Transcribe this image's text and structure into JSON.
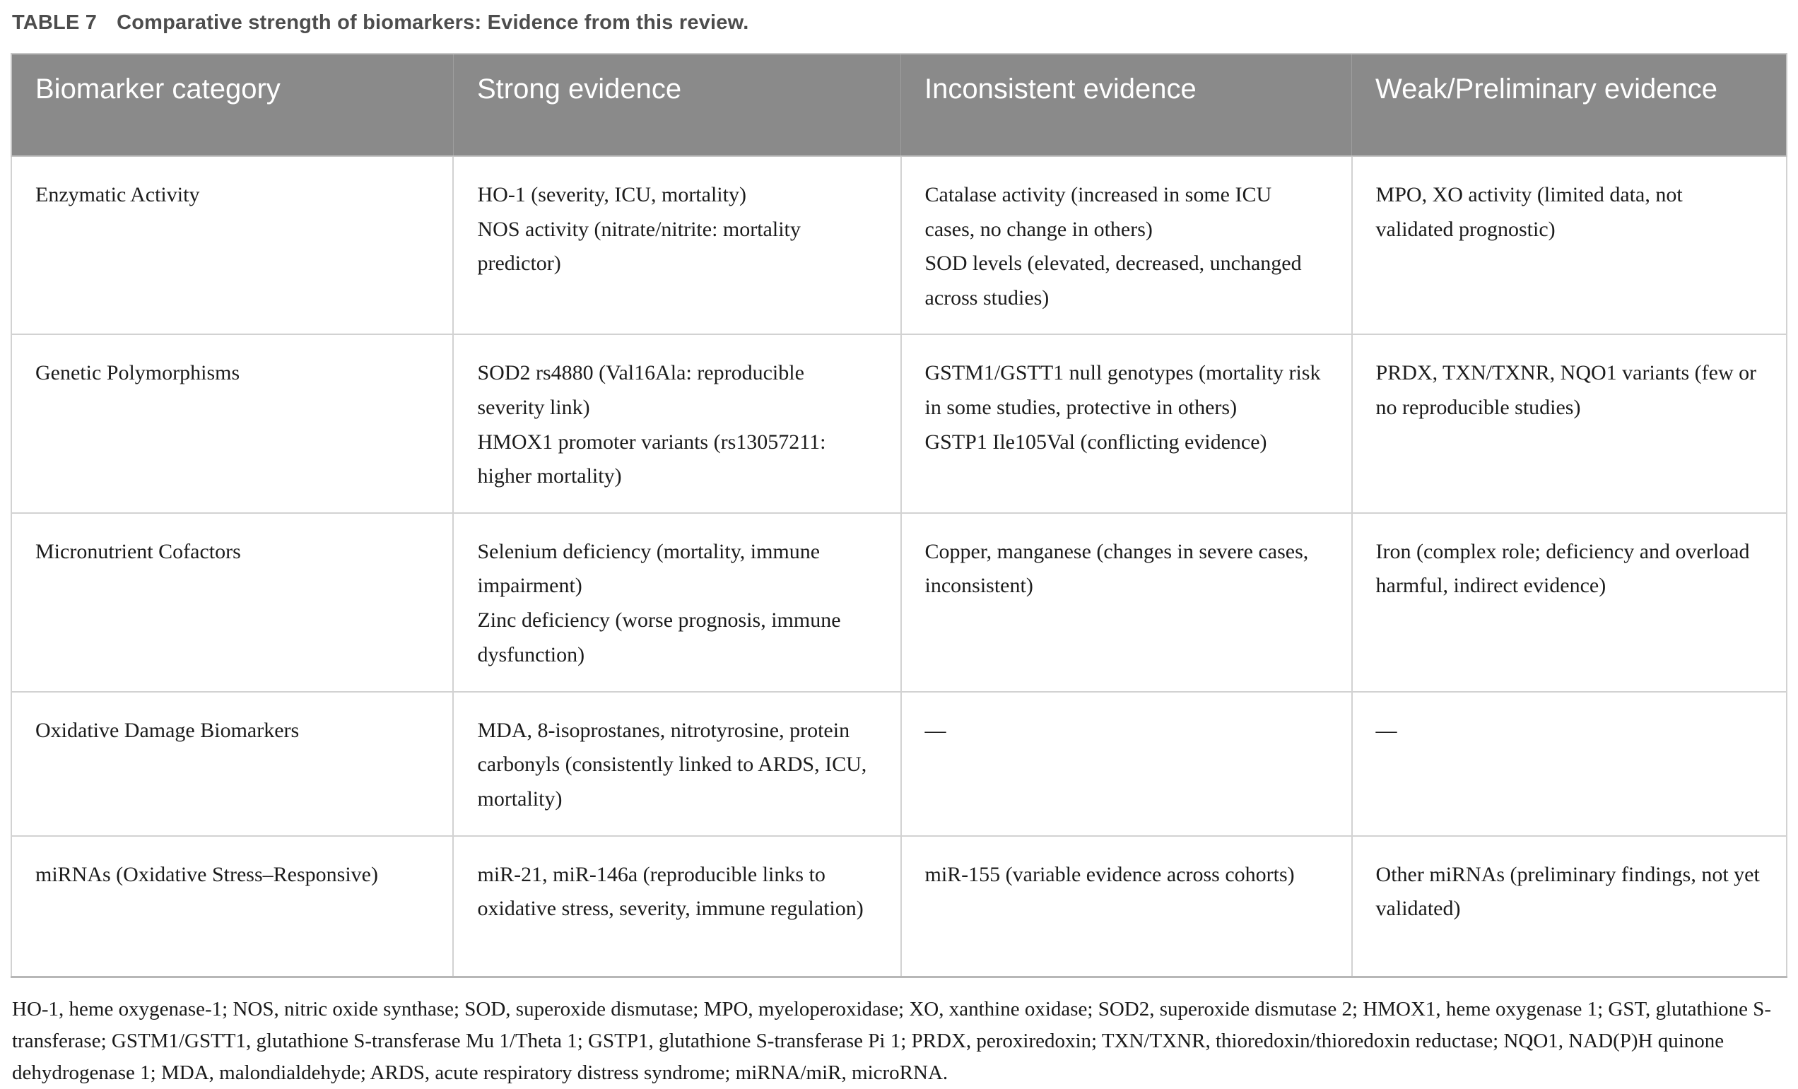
{
  "caption": {
    "label": "TABLE 7",
    "title": "Comparative strength of biomarkers: Evidence from this review."
  },
  "table": {
    "columns": [
      "Biomarker category",
      "Strong evidence",
      "Inconsistent evidence",
      "Weak/Preliminary evidence"
    ],
    "rows": [
      [
        "Enzymatic Activity",
        "HO-1 (severity, ICU, mortality)\nNOS activity (nitrate/nitrite: mortality predictor)",
        "Catalase activity (increased in some ICU cases, no change in others)\nSOD levels (elevated, decreased, unchanged across studies)",
        "MPO, XO activity (limited data, not validated prognostic)"
      ],
      [
        "Genetic Polymorphisms",
        "SOD2 rs4880 (Val16Ala: reproducible severity link)\nHMOX1 promoter variants (rs13057211: higher mortality)",
        "GSTM1/GSTT1 null genotypes (mortality risk in some studies, protective in others)\nGSTP1 Ile105Val (conflicting evidence)",
        "PRDX, TXN/TXNR, NQO1 variants (few or no reproducible studies)"
      ],
      [
        "Micronutrient Cofactors",
        "Selenium deficiency (mortality, immune impairment)\nZinc deficiency (worse prognosis, immune dysfunction)",
        "Copper, manganese (changes in severe cases, inconsistent)",
        "Iron (complex role; deficiency and overload harmful, indirect evidence)"
      ],
      [
        "Oxidative Damage Biomarkers",
        "MDA, 8-isoprostanes, nitrotyrosine, protein carbonyls (consistently linked to ARDS, ICU, mortality)",
        "—",
        "—"
      ],
      [
        "miRNAs (Oxidative Stress–Responsive)",
        "miR-21, miR-146a (reproducible links to oxidative stress, severity, immune regulation)",
        "miR-155 (variable evidence across cohorts)",
        "Other miRNAs (preliminary findings, not yet validated)"
      ]
    ],
    "footnote": "HO-1, heme oxygenase-1; NOS, nitric oxide synthase; SOD, superoxide dismutase; MPO, myeloperoxidase; XO, xanthine oxidase; SOD2, superoxide dismutase 2; HMOX1, heme oxygenase 1; GST, glutathione S-transferase; GSTM1/GSTT1, glutathione S-transferase Mu 1/Theta 1; GSTP1, glutathione S-transferase Pi 1; PRDX, peroxiredoxin; TXN/TXNR, thioredoxin/thioredoxin reductase; NQO1, NAD(P)H quinone dehydrogenase 1; MDA, malondialdehyde; ARDS, acute respiratory distress syndrome; miRNA/miR, microRNA."
  },
  "colors": {
    "header_bg": "#8a8a8a",
    "header_text": "#ffffff",
    "caption_text": "#4d4d4d",
    "body_text": "#1c1c1c",
    "border": "#c6c6c6"
  }
}
